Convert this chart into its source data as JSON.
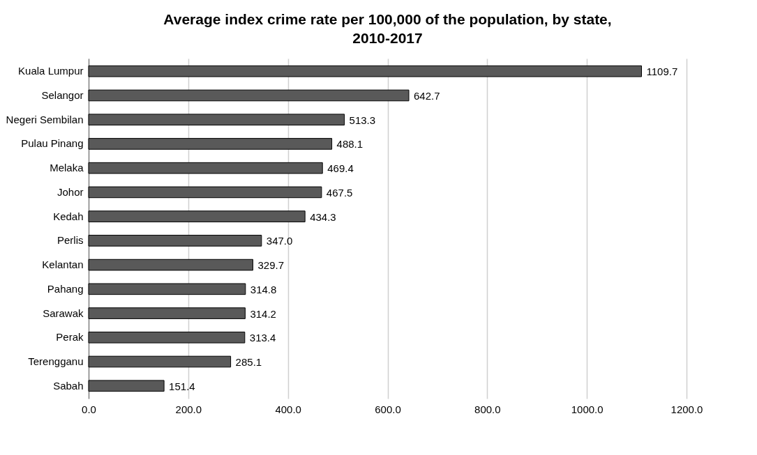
{
  "chart_data": {
    "type": "bar",
    "orientation": "horizontal",
    "title": "Average index crime rate per 100,000 of the population, by state, 2010-2017",
    "categories": [
      "Kuala Lumpur",
      "Selangor",
      "Negeri Sembilan",
      "Pulau Pinang",
      "Melaka",
      "Johor",
      "Kedah",
      "Perlis",
      "Kelantan",
      "Pahang",
      "Sarawak",
      "Perak",
      "Terengganu",
      "Sabah"
    ],
    "values": [
      1109.7,
      642.7,
      513.3,
      488.1,
      469.4,
      467.5,
      434.3,
      347.0,
      329.7,
      314.8,
      314.2,
      313.4,
      285.1,
      151.4
    ],
    "value_labels": [
      "1109.7",
      "642.7",
      "513.3",
      "488.1",
      "469.4",
      "467.5",
      "434.3",
      "347.0",
      "329.7",
      "314.8",
      "314.2",
      "313.4",
      "285.1",
      "151.4"
    ],
    "color": "#595959",
    "xlim": [
      0,
      1200
    ],
    "xticks": [
      {
        "value": 0,
        "label": "0.0"
      },
      {
        "value": 200,
        "label": "200.0"
      },
      {
        "value": 400,
        "label": "400.0"
      },
      {
        "value": 600,
        "label": "600.0"
      },
      {
        "value": 800,
        "label": "800.0"
      },
      {
        "value": 1000,
        "label": "1000.0"
      },
      {
        "value": 1200,
        "label": "1200.0"
      }
    ],
    "grid": "x"
  }
}
